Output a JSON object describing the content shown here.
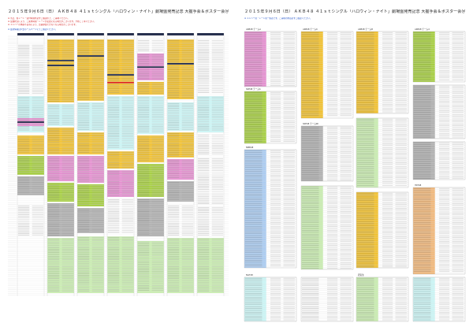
{
  "pages": [
    {
      "title": "２０１５年９月６日（日） ＡＫＢ４８ ４１ｓｔシングル「ハロウィン・ナイト」劇場盤発売記念 大握手会＆ポスター会＠幕張メッセ 国際展示場ホール",
      "notes_red": [
        "※ 当日、各レーン・受付時間を必ずご確認の上、ご来場ください。",
        "※ 混雑状況により、ご案内時間・レーンが変更になる場合がございます。予めご了承ください。",
        "※ メンバーの体調不良等により、急遽参加できなくなる場合がございます。"
      ],
      "notes_blue": [
        "※ 最新情報は公式ホームページにてご確認ください。"
      ]
    },
    {
      "title": "２０１５年９月６日（日） ＡＫＢ４８ ４１ｓｔシングル「ハロウィン・ナイト」劇場盤発売記念 大握手会＆ポスター会＠幕張メッセ 国際展示場ホール",
      "notes_red": [],
      "notes_blue": [
        "※ メンバー別・レーン別一覧表です。ご来場の際は必ずご確認ください。"
      ]
    }
  ],
  "colors": {
    "yellow": "#f2c12e",
    "pink": "#e58fd0",
    "green": "#a6cf3f",
    "light_green": "#c9edb0",
    "cyan": "#ccf6f6",
    "blue": "#aaccf2",
    "gray": "#b0b0b0",
    "orange": "#f2b87a",
    "navy": "#27304e",
    "white": "#ffffff"
  },
  "right_blocks": [
    {
      "title": "AKB48 チームA",
      "color": "pink"
    },
    {
      "title": "AKB48 チームK",
      "color": "yellow"
    },
    {
      "title": "AKB48 チームB",
      "color": "yellow"
    },
    {
      "title": "AKB48 チーム4",
      "color": "green"
    },
    {
      "title": "AKB48 チーム8",
      "color": "gray"
    },
    {
      "title": "SKE48 チームS",
      "color": "green"
    },
    {
      "title": "SKE48 チームKII",
      "color": "gray"
    },
    {
      "title": "NMB48",
      "color": "blue"
    },
    {
      "title": "HKT48",
      "color": "orange"
    },
    {
      "title": "NGT48",
      "color": "cyan"
    },
    {
      "title": "研究生",
      "color": "light_green"
    }
  ]
}
